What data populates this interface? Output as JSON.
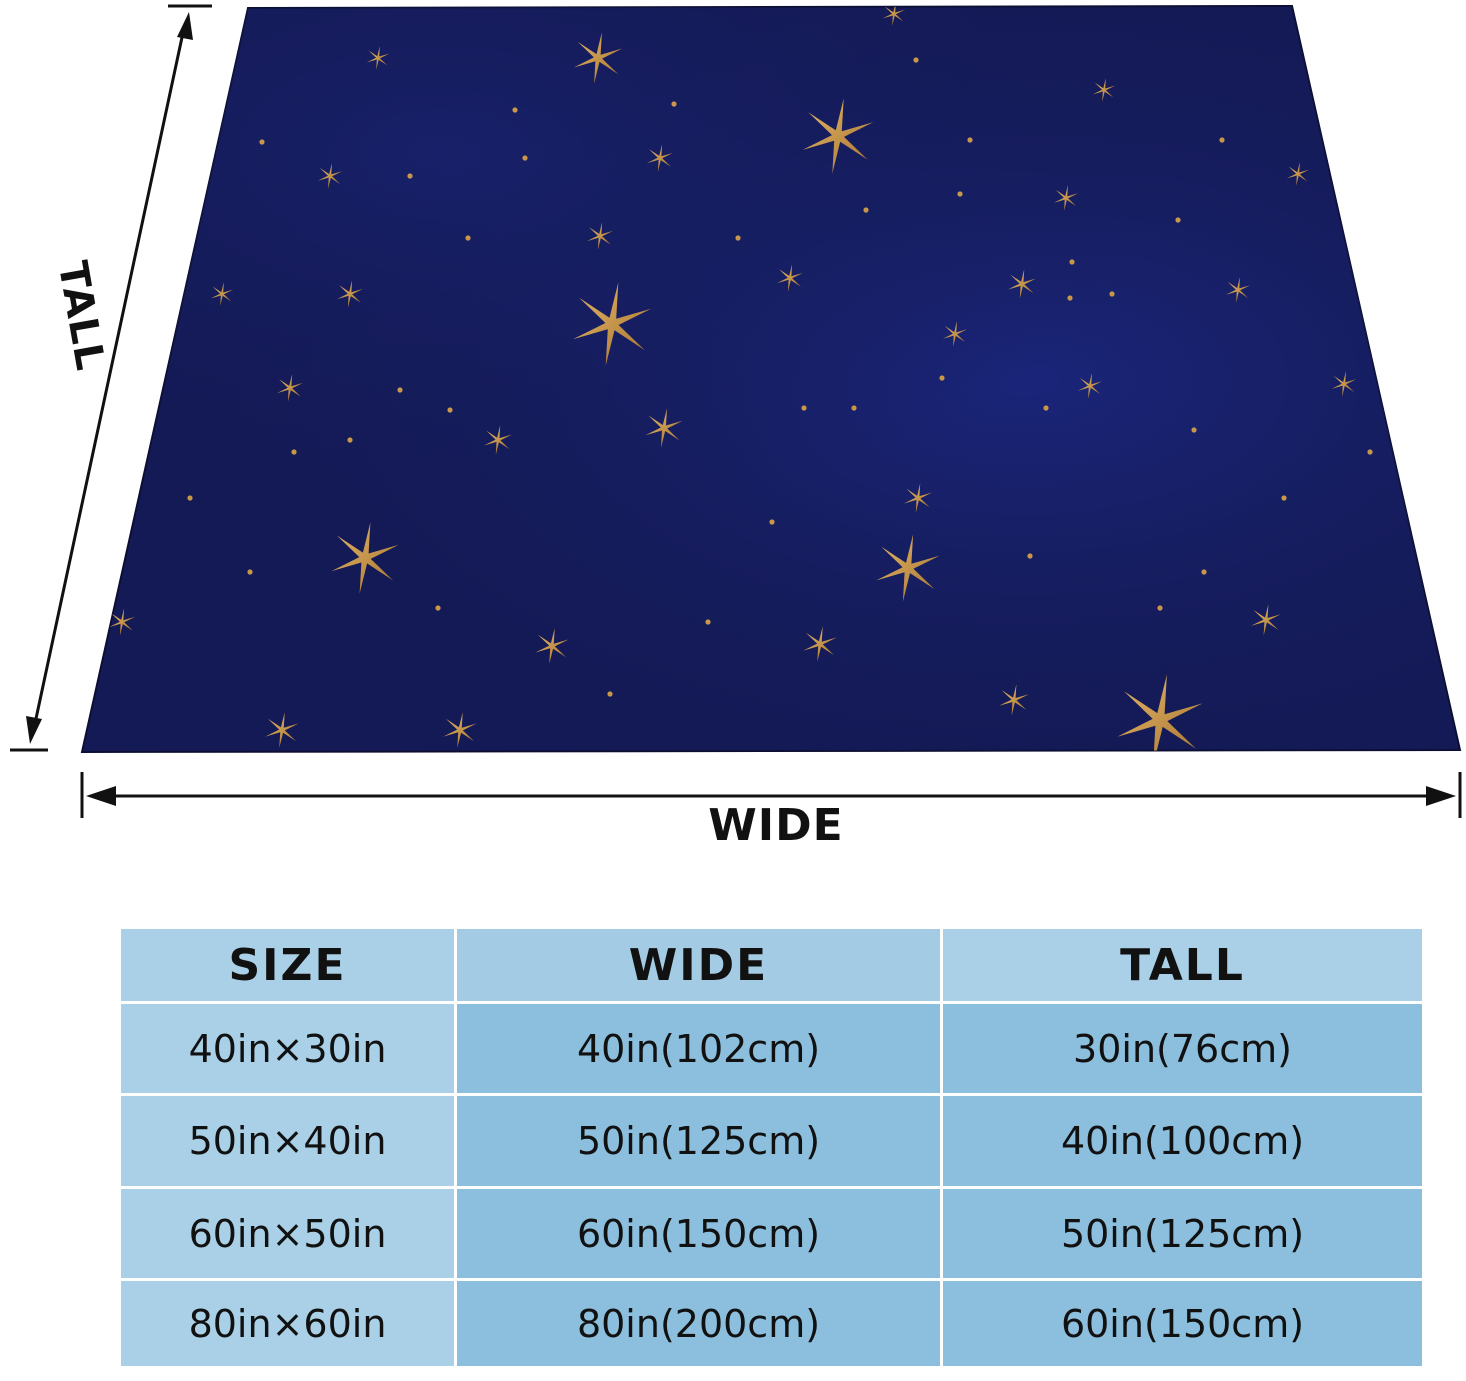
{
  "dimension_labels": {
    "tall": "TALL",
    "wide": "WIDE"
  },
  "product": {
    "background_color": "#141a55",
    "star_color": "#c9974a",
    "pattern": "gold-stars-icon"
  },
  "size_table": {
    "headers": [
      "SIZE",
      "WIDE",
      "TALL"
    ],
    "rows": [
      {
        "size": "40in×30in",
        "wide": "40in(102cm)",
        "tall": "30in(76cm)"
      },
      {
        "size": "50in×40in",
        "wide": "50in(125cm)",
        "tall": "40in(100cm)"
      },
      {
        "size": "60in×50in",
        "wide": "60in(150cm)",
        "tall": "50in(125cm)"
      },
      {
        "size": "80in×60in",
        "wide": "80in(200cm)",
        "tall": "60in(150cm)"
      }
    ],
    "colors": {
      "light": "#a9d0e6",
      "mid": "#8cbfdd"
    }
  }
}
